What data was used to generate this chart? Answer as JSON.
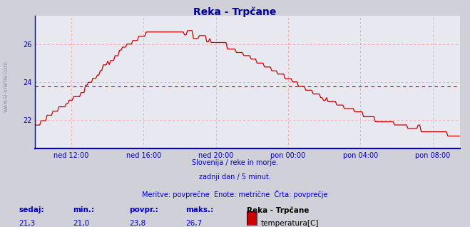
{
  "title": "Reka - Trpčane",
  "title_color": "#000099",
  "bg_color": "#d0d0d8",
  "plot_bg_color": "#e8e8f0",
  "line_color": "#cc0000",
  "avg_line_color": "#cc0000",
  "avg_line_value": 23.8,
  "grid_color": "#ffaaaa",
  "axis_color": "#0000cc",
  "ymin": 20.5,
  "ymax": 27.5,
  "yticks": [
    22,
    24,
    26
  ],
  "subtitle1": "Slovenija / reke in morje.",
  "subtitle2": "zadnji dan / 5 minut.",
  "subtitle3": "Meritve: povprečne  Enote: metrične  Črta: povprečje",
  "legend_labels": [
    "sedaj:",
    "min.:",
    "povpr.:",
    "maks.:"
  ],
  "legend_vals": [
    "21,3",
    "21,0",
    "23,8",
    "26,7"
  ],
  "legend_series_name": "Reka - Trpčane",
  "legend_series_unit": "temperatura[C]",
  "legend_series_color": "#cc0000",
  "xtick_labels": [
    "ned 12:00",
    "ned 16:00",
    "ned 20:00",
    "pon 00:00",
    "pon 04:00",
    "pon 08:00"
  ],
  "xtick_positions": [
    2,
    6,
    10,
    14,
    18,
    22
  ],
  "total_hours": 23.5,
  "n_points": 288
}
